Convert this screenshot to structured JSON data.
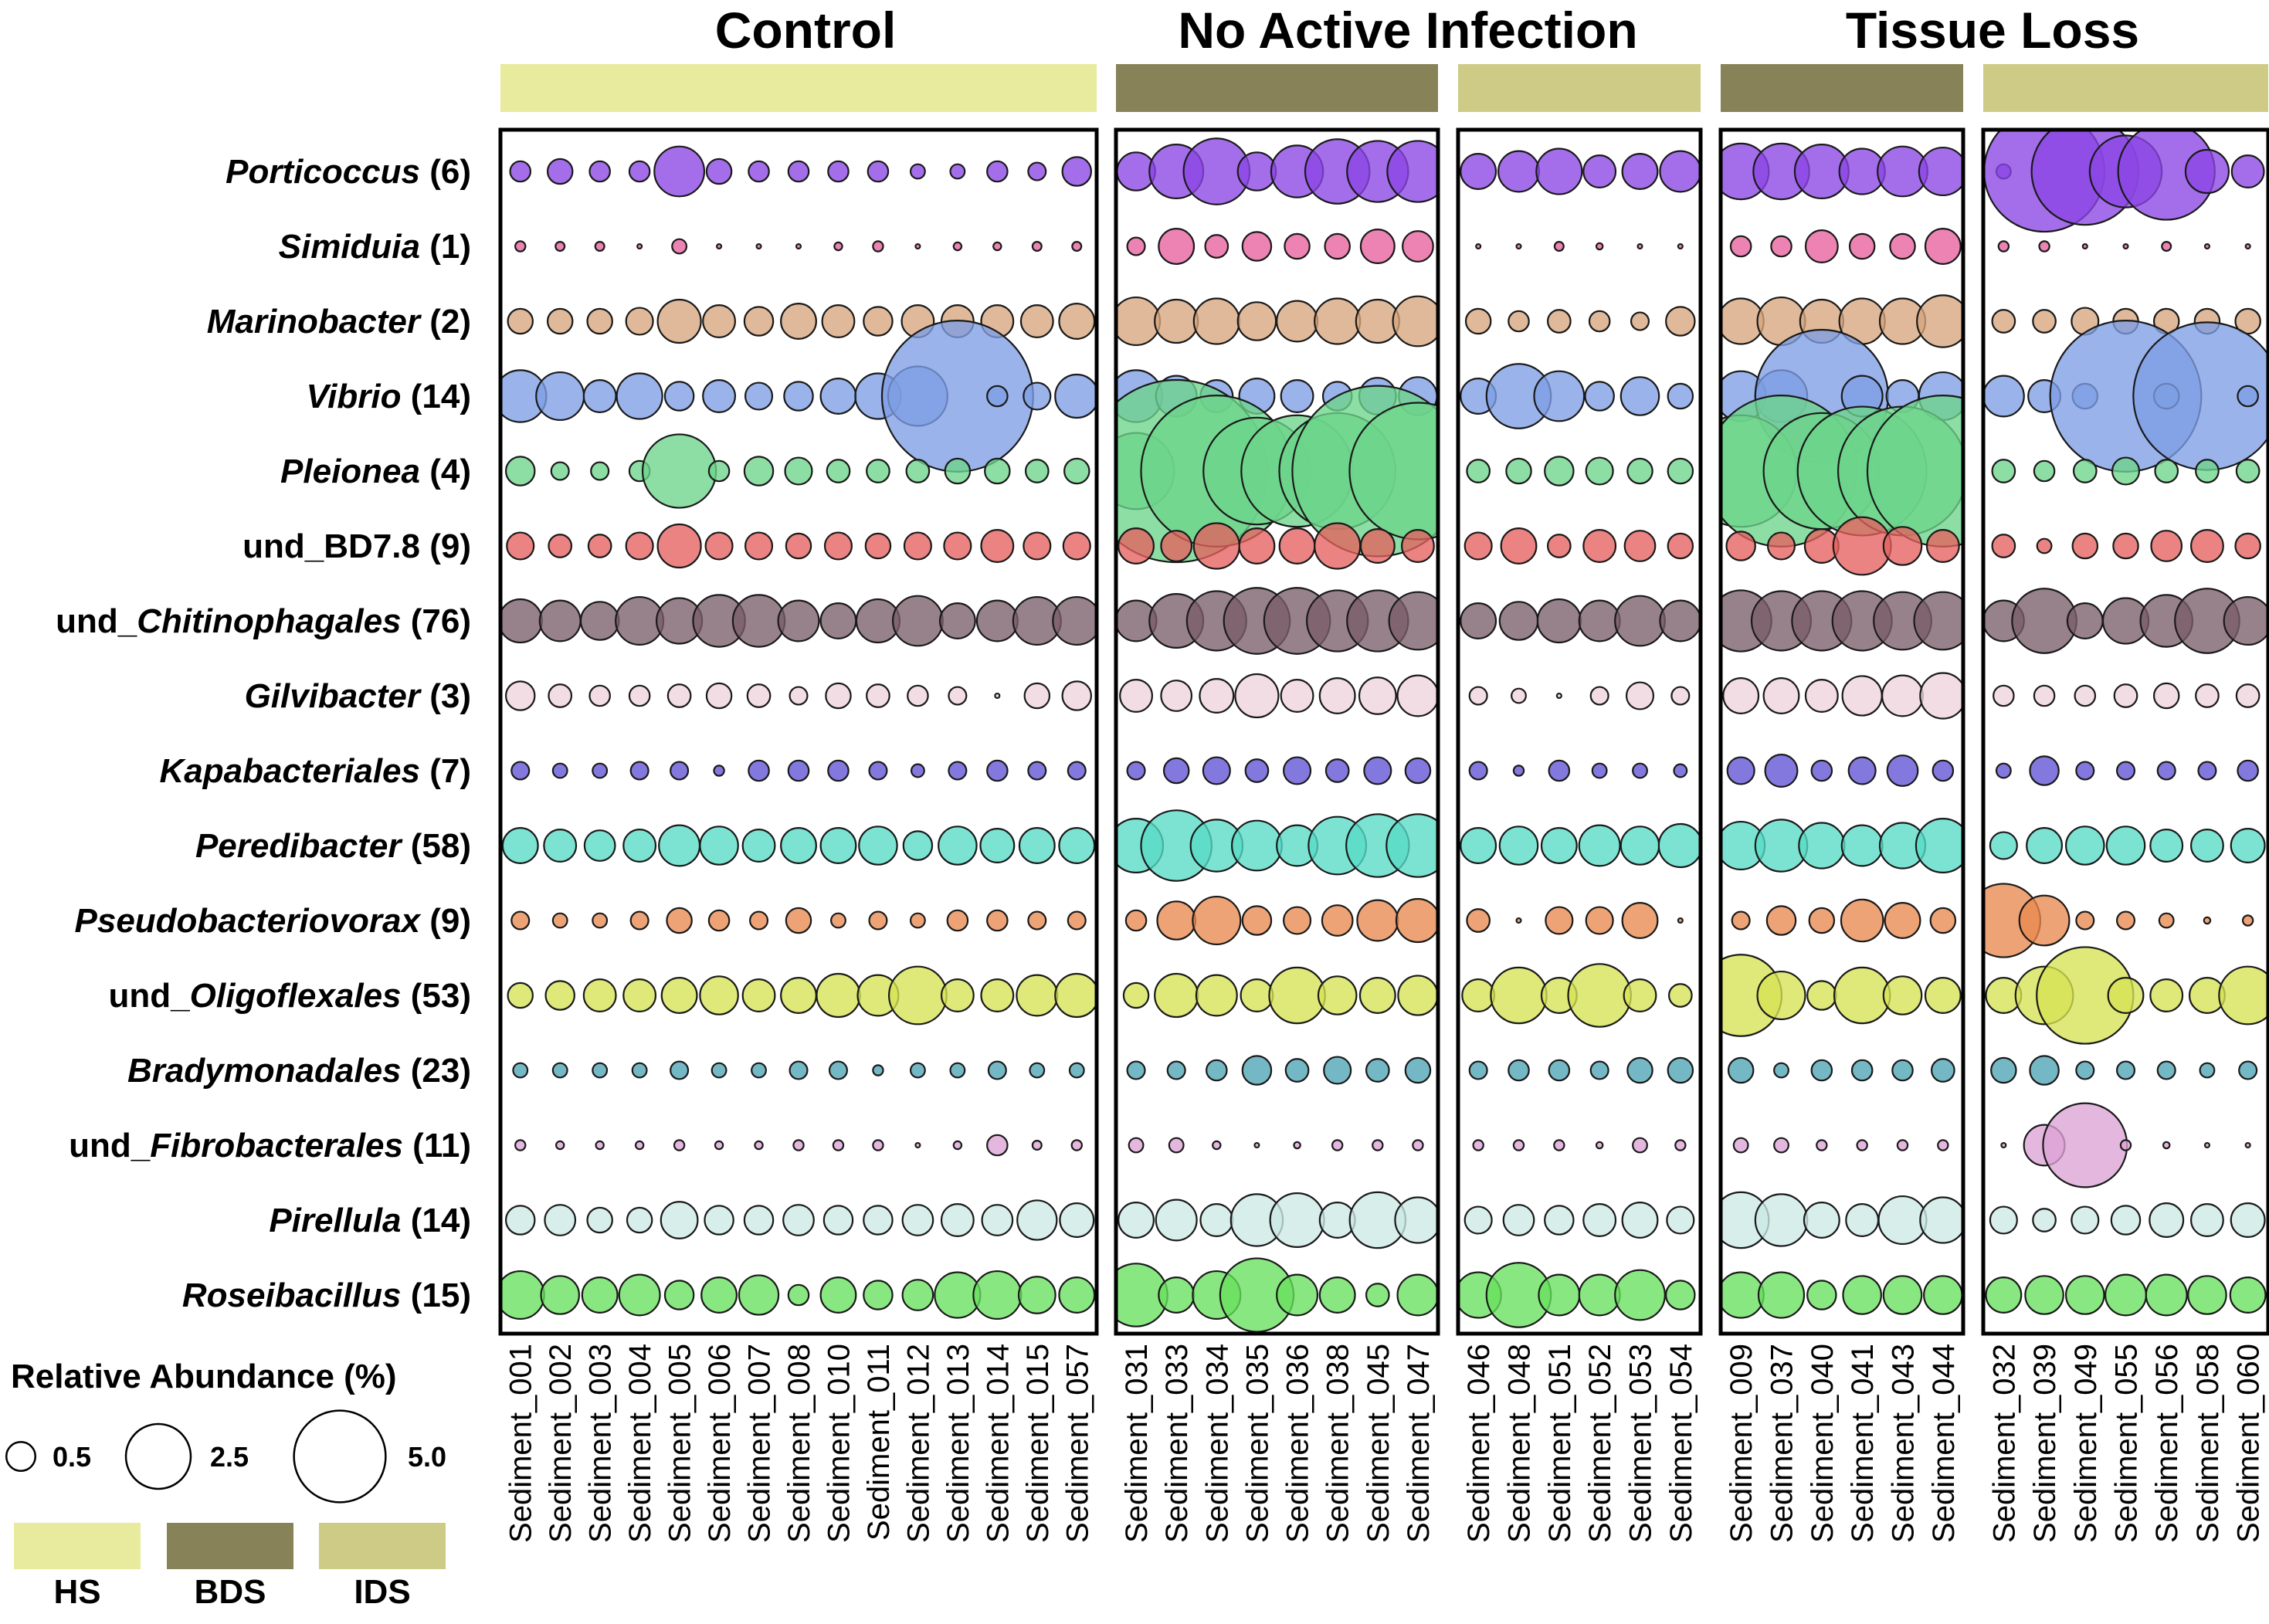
{
  "chart_data": {
    "type": "bubble",
    "titles": [
      "Control",
      "No Active Infection",
      "Tissue Loss"
    ],
    "status_colors": {
      "HS": "#e8eb9d",
      "BDS": "#878257",
      "IDS": "#cdcb86"
    },
    "panels": [
      {
        "status": "HS",
        "samples": [
          "Sediment_001",
          "Sediment_002",
          "Sediment_003",
          "Sediment_004",
          "Sediment_005",
          "Sediment_006",
          "Sediment_007",
          "Sediment_008",
          "Sediment_010",
          "Sediment_011",
          "Sediment_012",
          "Sediment_013",
          "Sediment_014",
          "Sediment_015",
          "Sediment_057"
        ]
      },
      {
        "status": "BDS",
        "samples": [
          "Sediment_031",
          "Sediment_033",
          "Sediment_034",
          "Sediment_035",
          "Sediment_036",
          "Sediment_038",
          "Sediment_045",
          "Sediment_047"
        ]
      },
      {
        "status": "IDS",
        "samples": [
          "Sediment_046",
          "Sediment_048",
          "Sediment_051",
          "Sediment_052",
          "Sediment_053",
          "Sediment_054"
        ]
      },
      {
        "status": "BDS",
        "samples": [
          "Sediment_009",
          "Sediment_037",
          "Sediment_040",
          "Sediment_041",
          "Sediment_043",
          "Sediment_044"
        ]
      },
      {
        "status": "IDS",
        "samples": [
          "Sediment_032",
          "Sediment_039",
          "Sediment_049",
          "Sediment_055",
          "Sediment_056",
          "Sediment_058",
          "Sediment_060"
        ]
      }
    ],
    "taxa": [
      {
        "pre": "",
        "italic": "Porticoccus",
        "post": " (6)",
        "color": "#8a45e4",
        "values": [
          [
            0.2,
            0.3,
            0.2,
            0.2,
            1.2,
            0.3,
            0.2,
            0.2,
            0.2,
            0.2,
            0.1,
            0.1,
            0.2,
            0.15,
            0.4
          ],
          [
            0.7,
            1.4,
            2.1,
            0.7,
            1.3,
            2.0,
            1.8,
            1.8
          ],
          [
            0.6,
            0.8,
            1.0,
            0.5,
            0.6,
            0.8
          ],
          [
            1.5,
            1.5,
            1.4,
            1.0,
            1.2,
            1.1
          ],
          [
            0.1,
            7.0,
            5.5,
            2.5,
            4.5,
            0.9,
            0.5
          ]
        ]
      },
      {
        "pre": "",
        "italic": "Simiduia",
        "post": " (1)",
        "color": "#e8609e",
        "values": [
          [
            0.05,
            0.04,
            0.04,
            0.01,
            0.1,
            0.01,
            0.01,
            0.01,
            0.03,
            0.05,
            0.01,
            0.03,
            0.03,
            0.04,
            0.04
          ],
          [
            0.15,
            0.6,
            0.25,
            0.4,
            0.3,
            0.3,
            0.55,
            0.45
          ],
          [
            0.01,
            0.01,
            0.04,
            0.02,
            0.01,
            0.01
          ],
          [
            0.2,
            0.2,
            0.5,
            0.3,
            0.3,
            0.6
          ],
          [
            0.05,
            0.05,
            0.01,
            0.01,
            0.04,
            0.01,
            0.01
          ]
        ]
      },
      {
        "pre": "",
        "italic": "Marinobacter",
        "post": " (2)",
        "color": "#d6a57c",
        "values": [
          [
            0.3,
            0.3,
            0.3,
            0.35,
            0.9,
            0.5,
            0.4,
            0.6,
            0.5,
            0.4,
            0.5,
            0.5,
            0.5,
            0.5,
            0.6
          ],
          [
            1.1,
            0.9,
            1.0,
            0.7,
            0.8,
            1.0,
            0.9,
            1.2
          ],
          [
            0.3,
            0.2,
            0.25,
            0.2,
            0.15,
            0.4
          ],
          [
            1.0,
            1.1,
            0.9,
            1.0,
            1.0,
            1.3
          ],
          [
            0.25,
            0.25,
            0.35,
            0.3,
            0.3,
            0.3,
            0.3
          ]
        ]
      },
      {
        "pre": "",
        "italic": "Vibrio",
        "post": " (14)",
        "color": "#7d9de4",
        "values": [
          [
            1.3,
            1.1,
            0.5,
            1.0,
            0.4,
            0.5,
            0.35,
            0.4,
            0.6,
            1.0,
            1.7,
            11.0,
            0.2,
            0.35,
            0.9
          ],
          [
            1.3,
            0.8,
            0.5,
            0.6,
            0.5,
            0.4,
            0.65,
            0.7
          ],
          [
            0.6,
            2.0,
            1.2,
            0.4,
            0.7,
            0.3
          ],
          [
            1.2,
            1.3,
            8.5,
            0.8,
            0.5,
            1.1
          ],
          [
            0.8,
            0.5,
            0.3,
            11.0,
            0.3,
            10.5,
            0.2
          ]
        ]
      },
      {
        "pre": "",
        "italic": "Pleionea",
        "post": " (4)",
        "color": "#6dd58b",
        "values": [
          [
            0.4,
            0.15,
            0.15,
            0.2,
            2.6,
            0.2,
            0.4,
            0.35,
            0.25,
            0.25,
            0.25,
            0.3,
            0.3,
            0.25,
            0.3
          ],
          [
            2.8,
            16.0,
            11.0,
            5.5,
            6.0,
            6.5,
            14.0,
            9.0
          ],
          [
            0.25,
            0.3,
            0.4,
            0.35,
            0.3,
            0.3
          ],
          [
            6.0,
            11.0,
            6.5,
            8.0,
            8.0,
            11.0
          ],
          [
            0.25,
            0.2,
            0.25,
            0.35,
            0.25,
            0.25,
            0.25
          ]
        ]
      },
      {
        "pre": "und_BD7.8",
        "italic": "",
        "post": " (9)",
        "color": "#e4605e",
        "values": [
          [
            0.35,
            0.25,
            0.25,
            0.35,
            0.9,
            0.35,
            0.35,
            0.3,
            0.35,
            0.3,
            0.35,
            0.35,
            0.5,
            0.35,
            0.35
          ],
          [
            0.6,
            0.45,
            1.0,
            0.6,
            0.6,
            1.0,
            0.55,
            0.5
          ],
          [
            0.35,
            0.6,
            0.25,
            0.5,
            0.45,
            0.3
          ],
          [
            0.4,
            0.35,
            0.55,
            1.6,
            0.7,
            0.5
          ],
          [
            0.25,
            0.1,
            0.3,
            0.3,
            0.45,
            0.5,
            0.3
          ]
        ]
      },
      {
        "pre": "und_",
        "italic": "Chitinophagales",
        "post": " (76)",
        "color": "#7a5d6a",
        "values": [
          [
            0.9,
            0.8,
            0.7,
            1.1,
            1.0,
            1.3,
            1.3,
            0.8,
            0.6,
            0.9,
            1.2,
            0.6,
            0.8,
            1.1,
            1.1
          ],
          [
            0.8,
            1.4,
            1.7,
            2.1,
            2.1,
            1.8,
            1.8,
            1.6
          ],
          [
            0.6,
            0.7,
            0.9,
            0.8,
            1.2,
            0.8
          ],
          [
            1.8,
            1.7,
            1.7,
            1.7,
            1.6,
            1.6
          ],
          [
            0.8,
            2.0,
            0.6,
            1.0,
            1.3,
            2.0,
            1.1
          ]
        ]
      },
      {
        "pre": "",
        "italic": "Gilvibacter",
        "post": " (3)",
        "color": "#f0d3dc",
        "values": [
          [
            0.4,
            0.25,
            0.2,
            0.2,
            0.25,
            0.3,
            0.25,
            0.15,
            0.3,
            0.25,
            0.2,
            0.15,
            0.01,
            0.3,
            0.4
          ],
          [
            0.5,
            0.45,
            0.55,
            0.9,
            0.5,
            0.6,
            0.65,
            0.8
          ],
          [
            0.15,
            0.1,
            0.01,
            0.15,
            0.35,
            0.15
          ],
          [
            0.6,
            0.6,
            0.5,
            0.75,
            0.8,
            1.0
          ],
          [
            0.2,
            0.2,
            0.2,
            0.25,
            0.3,
            0.25,
            0.25
          ]
        ]
      },
      {
        "pre": "",
        "italic": "Kapabacteriales",
        "post": " (7)",
        "color": "#6052d5",
        "values": [
          [
            0.15,
            0.1,
            0.1,
            0.15,
            0.15,
            0.05,
            0.2,
            0.2,
            0.2,
            0.15,
            0.08,
            0.15,
            0.2,
            0.15,
            0.15
          ],
          [
            0.15,
            0.3,
            0.35,
            0.25,
            0.35,
            0.25,
            0.35,
            0.3
          ],
          [
            0.15,
            0.05,
            0.2,
            0.1,
            0.1,
            0.08
          ],
          [
            0.35,
            0.5,
            0.2,
            0.35,
            0.45,
            0.2
          ],
          [
            0.1,
            0.4,
            0.15,
            0.15,
            0.15,
            0.15,
            0.2
          ]
        ]
      },
      {
        "pre": "",
        "italic": "Peredibacter",
        "post": " (58)",
        "color": "#57dbc7",
        "values": [
          [
            0.6,
            0.5,
            0.45,
            0.5,
            0.8,
            0.7,
            0.5,
            0.6,
            0.6,
            0.7,
            0.4,
            0.7,
            0.55,
            0.6,
            0.6
          ],
          [
            1.4,
            2.4,
            1.3,
            1.2,
            0.8,
            1.6,
            1.9,
            1.9
          ],
          [
            0.6,
            0.7,
            0.6,
            0.8,
            0.7,
            0.9
          ],
          [
            1.1,
            1.3,
            1.0,
            0.8,
            1.0,
            1.4
          ],
          [
            0.35,
            0.6,
            0.7,
            0.7,
            0.5,
            0.5,
            0.55
          ]
        ]
      },
      {
        "pre": "",
        "italic": "Pseudobacteriovorax",
        "post": " (9)",
        "color": "#e8894e",
        "values": [
          [
            0.15,
            0.1,
            0.1,
            0.15,
            0.3,
            0.2,
            0.15,
            0.3,
            0.1,
            0.15,
            0.1,
            0.2,
            0.2,
            0.15,
            0.15
          ],
          [
            0.2,
            0.7,
            1.1,
            0.4,
            0.35,
            0.45,
            0.8,
            0.9
          ],
          [
            0.25,
            0.01,
            0.35,
            0.35,
            0.6,
            0.01
          ],
          [
            0.15,
            0.4,
            0.3,
            0.85,
            0.6,
            0.3
          ],
          [
            2.6,
            1.2,
            0.15,
            0.15,
            0.1,
            0.02,
            0.05
          ]
        ]
      },
      {
        "pre": "und_",
        "italic": "Oligoflexales",
        "post": " (53)",
        "color": "#d6e353",
        "values": [
          [
            0.3,
            0.4,
            0.5,
            0.5,
            0.6,
            0.7,
            0.5,
            0.6,
            0.9,
            0.8,
            1.6,
            0.5,
            0.5,
            0.8,
            0.9
          ],
          [
            0.3,
            0.9,
            0.8,
            0.5,
            1.5,
            0.7,
            0.6,
            0.75
          ],
          [
            0.5,
            1.5,
            0.6,
            1.9,
            0.5,
            0.25
          ],
          [
            3.2,
            1.1,
            0.4,
            1.5,
            0.7,
            0.6
          ],
          [
            0.6,
            1.6,
            4.5,
            0.6,
            0.5,
            0.6,
            1.6
          ]
        ]
      },
      {
        "pre": "",
        "italic": "Bradymonadales",
        "post": " (23)",
        "color": "#4da4b5",
        "values": [
          [
            0.1,
            0.1,
            0.1,
            0.1,
            0.15,
            0.1,
            0.1,
            0.15,
            0.15,
            0.05,
            0.1,
            0.1,
            0.15,
            0.1,
            0.1
          ],
          [
            0.15,
            0.15,
            0.2,
            0.4,
            0.25,
            0.35,
            0.25,
            0.3
          ],
          [
            0.15,
            0.2,
            0.2,
            0.15,
            0.3,
            0.3
          ],
          [
            0.3,
            0.1,
            0.2,
            0.2,
            0.2,
            0.25
          ],
          [
            0.3,
            0.4,
            0.15,
            0.15,
            0.15,
            0.1,
            0.15
          ]
        ]
      },
      {
        "pre": "und_",
        "italic": "Fibrobacterales",
        "post": " (11)",
        "color": "#dca3d5",
        "values": [
          [
            0.05,
            0.03,
            0.03,
            0.03,
            0.05,
            0.03,
            0.03,
            0.05,
            0.05,
            0.05,
            0.01,
            0.03,
            0.2,
            0.04,
            0.05
          ],
          [
            0.1,
            0.1,
            0.03,
            0.01,
            0.02,
            0.05,
            0.05,
            0.05
          ],
          [
            0.05,
            0.05,
            0.05,
            0.02,
            0.1,
            0.05
          ],
          [
            0.1,
            0.1,
            0.05,
            0.05,
            0.05,
            0.05
          ],
          [
            0.01,
            0.8,
            3.4,
            0.05,
            0.02,
            0.01,
            0.01
          ]
        ]
      },
      {
        "pre": "",
        "italic": "Pirellula",
        "post": " (14)",
        "color": "#cce9e5",
        "values": [
          [
            0.4,
            0.45,
            0.3,
            0.3,
            0.65,
            0.4,
            0.4,
            0.45,
            0.4,
            0.4,
            0.45,
            0.5,
            0.45,
            0.75,
            0.55
          ],
          [
            0.6,
            0.8,
            0.5,
            1.3,
            1.4,
            0.6,
            1.5,
            1.0
          ],
          [
            0.35,
            0.45,
            0.4,
            0.5,
            0.6,
            0.35
          ],
          [
            1.5,
            1.3,
            0.6,
            0.5,
            1.1,
            1.0
          ],
          [
            0.35,
            0.25,
            0.35,
            0.4,
            0.55,
            0.5,
            0.55
          ]
        ]
      },
      {
        "pre": "",
        "italic": "Roseibacillus",
        "post": " (15)",
        "color": "#68e05d",
        "values": [
          [
            1.1,
            0.7,
            0.6,
            0.8,
            0.4,
            0.6,
            0.75,
            0.2,
            0.6,
            0.4,
            0.45,
            1.0,
            1.1,
            0.65,
            0.6
          ],
          [
            1.9,
            0.6,
            1.1,
            2.6,
            0.8,
            0.6,
            0.25,
            0.8
          ],
          [
            1.0,
            2.0,
            0.8,
            0.8,
            1.2,
            0.4
          ],
          [
            1.0,
            1.0,
            0.4,
            0.7,
            0.7,
            0.7
          ],
          [
            0.6,
            0.7,
            0.7,
            0.8,
            0.8,
            0.7,
            0.6
          ]
        ]
      }
    ],
    "legend": {
      "title": "Relative Abundance (%)",
      "sizes": [
        {
          "label": "0.5",
          "value": 0.5
        },
        {
          "label": "2.5",
          "value": 2.5
        },
        {
          "label": "5.0",
          "value": 5.0
        }
      ],
      "categories": [
        {
          "label": "HS",
          "color": "#e8eb9d"
        },
        {
          "label": "BDS",
          "color": "#878257"
        },
        {
          "label": "IDS",
          "color": "#cdcb86"
        }
      ]
    }
  }
}
